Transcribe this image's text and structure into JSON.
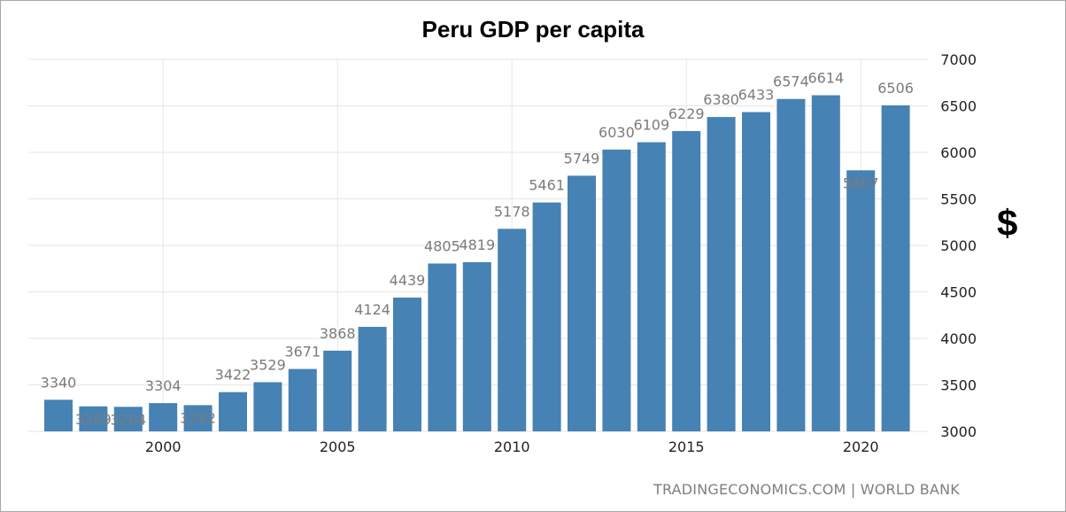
{
  "chart_data": {
    "type": "bar",
    "title": "Peru GDP per capita",
    "ylabel": "$",
    "source": "TRADINGECONOMICS.COM | WORLD BANK",
    "ylim": [
      3000,
      7000
    ],
    "yticks": [
      3000,
      3500,
      4000,
      4500,
      5000,
      5500,
      6000,
      6500,
      7000
    ],
    "xticks": [
      "2000",
      "2005",
      "2010",
      "2015",
      "2020"
    ],
    "grid": true,
    "bar_color": "#4682b4",
    "categories": [
      "1997",
      "1998",
      "1999",
      "2000",
      "2001",
      "2002",
      "2003",
      "2004",
      "2005",
      "2006",
      "2007",
      "2008",
      "2009",
      "2010",
      "2011",
      "2012",
      "2013",
      "2014",
      "2015",
      "2016",
      "2017",
      "2018",
      "2019",
      "2020",
      "2021"
    ],
    "values": [
      3340,
      3269,
      3264,
      3304,
      3282,
      3422,
      3529,
      3671,
      3868,
      4124,
      4439,
      4805,
      4819,
      5178,
      5461,
      5749,
      6030,
      6109,
      6229,
      6380,
      6433,
      6574,
      6614,
      5807,
      6506
    ],
    "labels": [
      "3340",
      "3269",
      "3264",
      "3304",
      "3282",
      "3422",
      "3529",
      "3671",
      "3868",
      "4124",
      "4439",
      "4805",
      "4819",
      "5178",
      "5461",
      "5749",
      "6030",
      "6109",
      "6229",
      "6380",
      "6433",
      "6574",
      "6614",
      "5807",
      "6506"
    ]
  }
}
